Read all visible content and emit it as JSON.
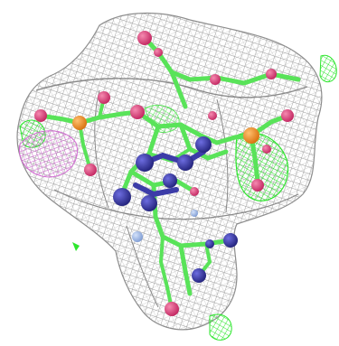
{
  "colors": {
    "background": "#ffffff",
    "mesh_gray": "#9a9a9a",
    "mesh_green": "#2ee62e",
    "mesh_magenta": "#d36ad3",
    "carbon": "#59e359",
    "nitrogen": "#3c3ca8",
    "oxygen": "#e0457a",
    "phosphorus": "#f08c1e",
    "light_blue": "#9ab7e8"
  },
  "atom_legend": [
    {
      "element": "carbon",
      "icon": "green-bond"
    },
    {
      "element": "nitrogen",
      "icon": "blue-sphere"
    },
    {
      "element": "oxygen",
      "icon": "pink-sphere"
    },
    {
      "element": "phosphorus",
      "icon": "orange-sphere"
    }
  ]
}
